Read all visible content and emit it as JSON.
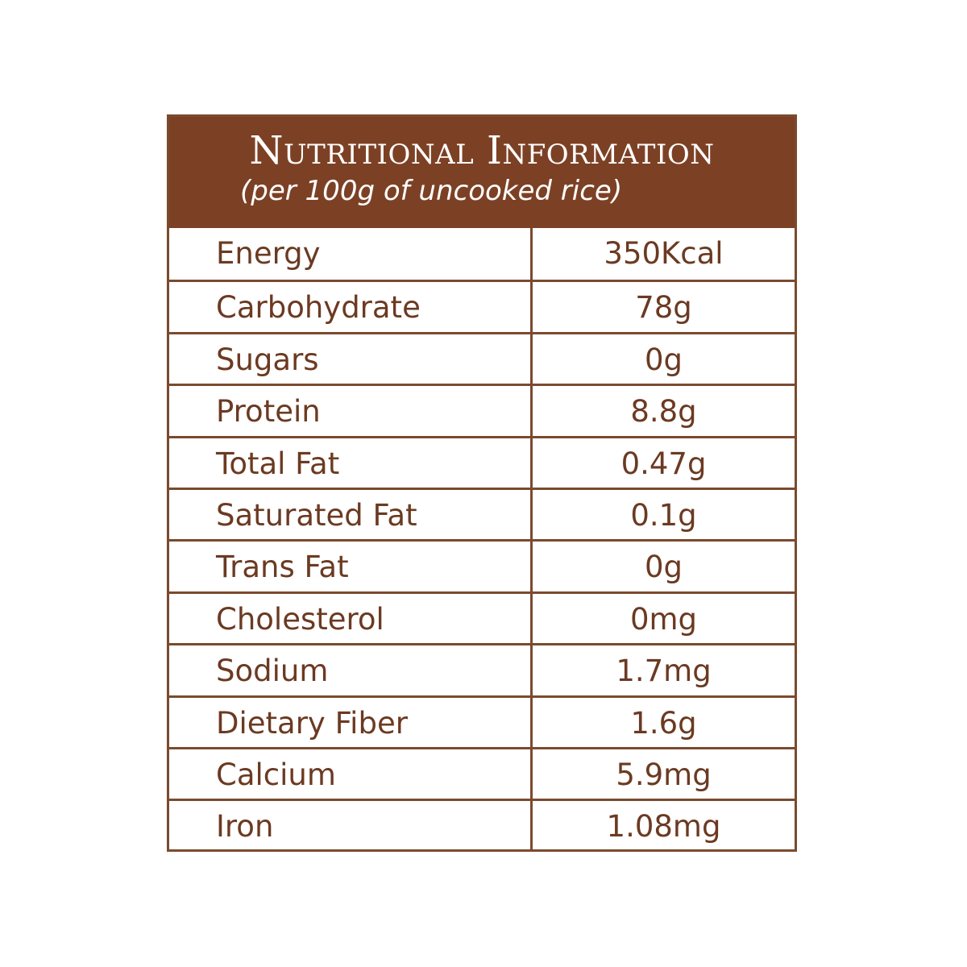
{
  "header": {
    "title": "Nutritional Information",
    "subtitle": "(per 100g of uncooked rice)"
  },
  "table": {
    "rows": [
      [
        "Energy",
        "350Kcal"
      ],
      [
        "Carbohydrate",
        "78g"
      ],
      [
        "Sugars",
        "0g"
      ],
      [
        "Protein",
        "8.8g"
      ],
      [
        "Total Fat",
        "0.47g"
      ],
      [
        "Saturated Fat",
        "0.1g"
      ],
      [
        "Trans Fat",
        "0g"
      ],
      [
        "Cholesterol",
        "0mg"
      ],
      [
        "Sodium",
        "1.7mg"
      ],
      [
        "Dietary Fiber",
        "1.6g"
      ],
      [
        "Calcium",
        "5.9mg"
      ],
      [
        "Iron",
        "1.08mg"
      ]
    ]
  }
}
